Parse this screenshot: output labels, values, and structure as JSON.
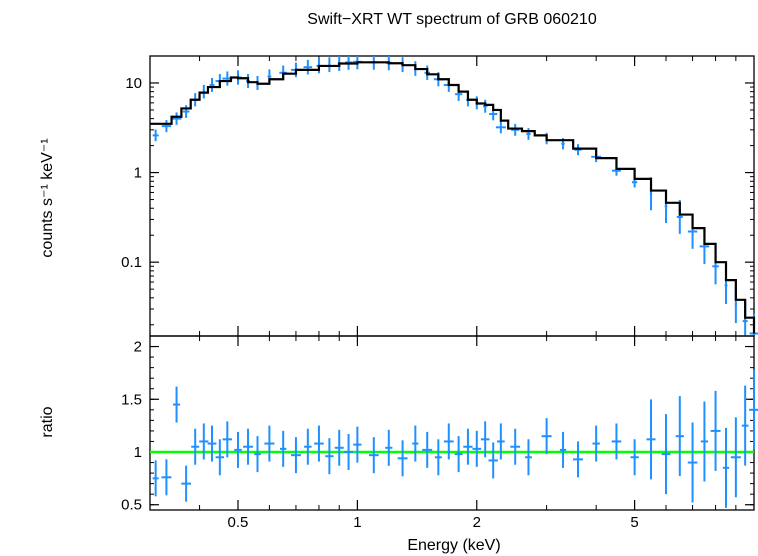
{
  "colors": {
    "data": "#1e90ff",
    "model": "#000000",
    "unity": "#00ff00",
    "frame": "#000000"
  },
  "chart_data": [
    {
      "type": "scatter",
      "title": "Swift−XRT WT spectrum of GRB 060210",
      "ylabel": "counts s⁻¹ keV⁻¹",
      "xscale": "log",
      "yscale": "log",
      "xlim": [
        0.3,
        10
      ],
      "ylim": [
        0.015,
        20
      ],
      "yticks": [
        0.1,
        1,
        10
      ],
      "ytick_labels": [
        "0.1",
        "1",
        "10"
      ],
      "series": [
        {
          "kind": "data",
          "x": [
            0.31,
            0.33,
            0.35,
            0.37,
            0.39,
            0.41,
            0.43,
            0.45,
            0.47,
            0.5,
            0.53,
            0.56,
            0.6,
            0.65,
            0.7,
            0.75,
            0.8,
            0.85,
            0.9,
            0.95,
            1.0,
            1.1,
            1.2,
            1.3,
            1.4,
            1.5,
            1.6,
            1.7,
            1.8,
            1.9,
            2.0,
            2.1,
            2.2,
            2.3,
            2.5,
            2.7,
            3.0,
            3.3,
            3.6,
            4.0,
            4.5,
            5.0,
            5.5,
            6.0,
            6.5,
            7.0,
            7.5,
            8.0,
            8.5,
            9.0,
            9.5,
            10.0
          ],
          "y": [
            2.6,
            3.3,
            4.0,
            4.8,
            6.5,
            8.0,
            9.5,
            10.5,
            11.2,
            11.5,
            10.5,
            10.0,
            11.8,
            13.0,
            14.0,
            15.0,
            15.5,
            16.0,
            16.5,
            17.0,
            17.2,
            17.0,
            16.8,
            16.0,
            14.5,
            13.0,
            11.0,
            9.5,
            7.5,
            6.5,
            6.0,
            5.5,
            4.5,
            3.2,
            3.0,
            2.7,
            2.4,
            2.1,
            1.8,
            1.5,
            1.05,
            0.78,
            0.58,
            0.42,
            0.32,
            0.22,
            0.15,
            0.09,
            0.055,
            0.034,
            0.022,
            0.016
          ]
        },
        {
          "kind": "model",
          "x": [
            0.3,
            0.32,
            0.34,
            0.36,
            0.38,
            0.4,
            0.42,
            0.45,
            0.48,
            0.5,
            0.53,
            0.56,
            0.6,
            0.65,
            0.7,
            0.8,
            0.9,
            1.0,
            1.1,
            1.2,
            1.3,
            1.4,
            1.5,
            1.6,
            1.7,
            1.8,
            1.9,
            2.0,
            2.1,
            2.2,
            2.3,
            2.4,
            2.6,
            2.8,
            3.0,
            3.5,
            4.0,
            4.5,
            5.0,
            5.5,
            6.0,
            6.5,
            7.0,
            7.5,
            8.0,
            8.5,
            9.0,
            9.5,
            10.0
          ],
          "y": [
            3.5,
            3.5,
            4.2,
            5.2,
            6.5,
            7.8,
            9.0,
            10.5,
            11.5,
            11.3,
            10.2,
            9.8,
            11.0,
            12.7,
            14.0,
            15.5,
            16.5,
            17.0,
            17.0,
            16.6,
            15.8,
            14.3,
            12.5,
            11.0,
            9.5,
            8.0,
            6.5,
            5.9,
            5.7,
            5.0,
            3.8,
            3.1,
            2.9,
            2.6,
            2.3,
            1.85,
            1.45,
            1.1,
            0.85,
            0.63,
            0.46,
            0.34,
            0.24,
            0.16,
            0.1,
            0.063,
            0.038,
            0.024,
            0.016
          ]
        }
      ]
    },
    {
      "type": "scatter",
      "xlabel": "Energy (keV)",
      "ylabel": "ratio",
      "xscale": "log",
      "xlim": [
        0.3,
        10
      ],
      "ylim": [
        0.45,
        2.1
      ],
      "xticks": [
        0.5,
        1,
        2,
        5
      ],
      "xtick_labels": [
        "0.5",
        "1",
        "2",
        "5"
      ],
      "yticks": [
        0.5,
        1,
        1.5,
        2
      ],
      "ytick_labels": [
        "0.5",
        "1",
        "1.5",
        "2"
      ],
      "reference_line": 1,
      "series": [
        {
          "kind": "data",
          "x": [
            0.31,
            0.33,
            0.35,
            0.37,
            0.39,
            0.41,
            0.43,
            0.45,
            0.47,
            0.5,
            0.53,
            0.56,
            0.6,
            0.65,
            0.7,
            0.75,
            0.8,
            0.85,
            0.9,
            0.95,
            1.0,
            1.1,
            1.2,
            1.3,
            1.4,
            1.5,
            1.6,
            1.7,
            1.8,
            1.9,
            2.0,
            2.1,
            2.2,
            2.3,
            2.5,
            2.7,
            3.0,
            3.3,
            3.6,
            4.0,
            4.5,
            5.0,
            5.5,
            6.0,
            6.5,
            7.0,
            7.5,
            8.0,
            8.5,
            9.0,
            9.5,
            10.0
          ],
          "y": [
            0.75,
            0.76,
            1.45,
            0.7,
            1.05,
            1.1,
            1.08,
            0.95,
            1.12,
            1.02,
            1.05,
            0.98,
            1.08,
            1.03,
            0.97,
            1.05,
            1.08,
            0.96,
            1.04,
            1.0,
            1.07,
            0.97,
            1.04,
            0.94,
            1.08,
            1.02,
            0.95,
            1.1,
            0.98,
            1.05,
            1.03,
            1.12,
            0.92,
            1.1,
            1.05,
            0.95,
            1.15,
            1.02,
            0.93,
            1.08,
            1.1,
            0.95,
            1.12,
            0.98,
            1.15,
            0.9,
            1.1,
            1.2,
            0.85,
            0.95,
            1.25,
            1.4
          ]
        }
      ]
    }
  ]
}
